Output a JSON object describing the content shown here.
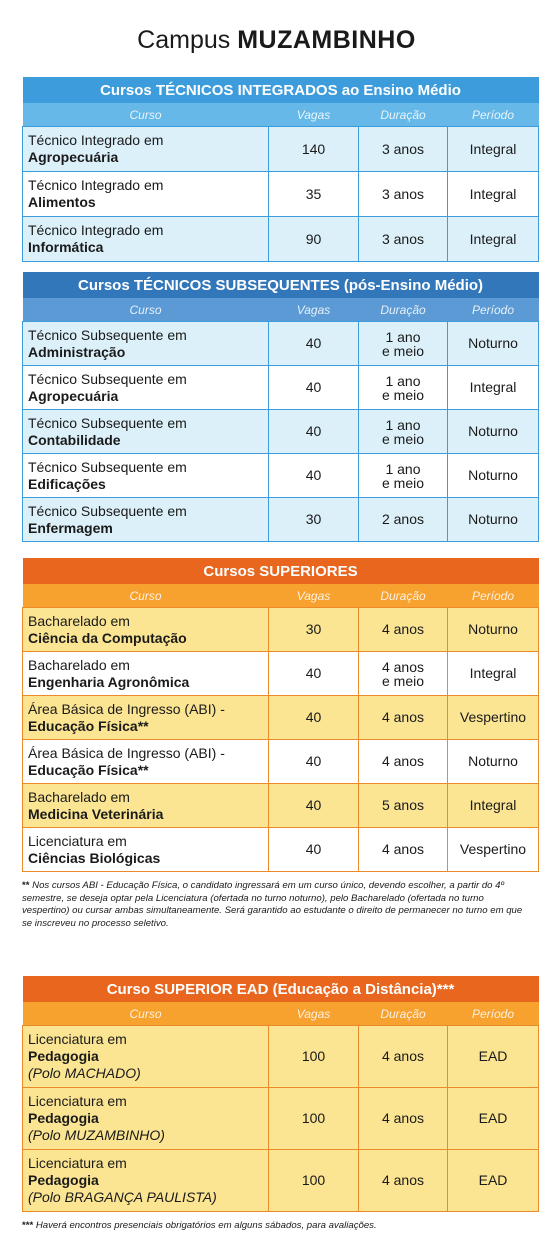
{
  "title": {
    "prefix": "Campus",
    "name": "MUZAMBINHO"
  },
  "sections": [
    {
      "title": "Cursos TÉCNICOS INTEGRADOS ao Ensino Médio",
      "headers": [
        "Curso",
        "Vagas",
        "Duração",
        "Período"
      ],
      "rows": [
        {
          "line": "Técnico Integrado em",
          "name": "Agropecuária",
          "vagas": 140,
          "duracao": [
            "3 anos"
          ],
          "periodo": "Integral"
        },
        {
          "line": "Técnico Integrado em",
          "name": "Alimentos",
          "vagas": 35,
          "duracao": [
            "3 anos"
          ],
          "periodo": "Integral"
        },
        {
          "line": "Técnico Integrado em",
          "name": "Informática",
          "vagas": 90,
          "duracao": [
            "3 anos"
          ],
          "periodo": "Integral"
        }
      ]
    },
    {
      "title": "Cursos TÉCNICOS SUBSEQUENTES (pós-Ensino Médio)",
      "headers": [
        "Curso",
        "Vagas",
        "Duração",
        "Período"
      ],
      "rows": [
        {
          "line": "Técnico Subsequente em",
          "name": "Administração",
          "vagas": 40,
          "duracao": [
            "1 ano",
            "e meio"
          ],
          "periodo": "Noturno"
        },
        {
          "line": "Técnico Subsequente em",
          "name": "Agropecuária",
          "vagas": 40,
          "duracao": [
            "1 ano",
            "e meio"
          ],
          "periodo": "Integral"
        },
        {
          "line": "Técnico Subsequente em",
          "name": "Contabilidade",
          "vagas": 40,
          "duracao": [
            "1 ano",
            "e meio"
          ],
          "periodo": "Noturno"
        },
        {
          "line": "Técnico Subsequente em",
          "name": "Edificações",
          "vagas": 40,
          "duracao": [
            "1 ano",
            "e meio"
          ],
          "periodo": "Noturno"
        },
        {
          "line": "Técnico Subsequente em",
          "name": "Enfermagem",
          "vagas": 30,
          "duracao": [
            "2 anos"
          ],
          "periodo": "Noturno"
        }
      ]
    },
    {
      "title": "Cursos SUPERIORES",
      "headers": [
        "Curso",
        "Vagas",
        "Duração",
        "Período"
      ],
      "rows": [
        {
          "line": "Bacharelado em",
          "name": "Ciência da Computação",
          "vagas": 30,
          "duracao": [
            "4 anos"
          ],
          "periodo": "Noturno"
        },
        {
          "line": "Bacharelado em",
          "name": "Engenharia Agronômica",
          "vagas": 40,
          "duracao": [
            "4 anos",
            "e meio"
          ],
          "periodo": "Integral"
        },
        {
          "line": "Área Básica de Ingresso (ABI) -",
          "name": "Educação Física**",
          "vagas": 40,
          "duracao": [
            "4 anos"
          ],
          "periodo": "Vespertino"
        },
        {
          "line": "Área Básica de Ingresso (ABI) -",
          "name": "Educação Física**",
          "vagas": 40,
          "duracao": [
            "4 anos"
          ],
          "periodo": "Noturno"
        },
        {
          "line": "Bacharelado em",
          "name": "Medicina Veterinária",
          "vagas": 40,
          "duracao": [
            "5 anos"
          ],
          "periodo": "Integral"
        },
        {
          "line": "Licenciatura em",
          "name": "Ciências Biológicas",
          "vagas": 40,
          "duracao": [
            "4 anos"
          ],
          "periodo": "Vespertino"
        }
      ],
      "note": {
        "mark": "**",
        "text": "Nos cursos ABI - Educação Física, o candidato ingressará em um curso único, devendo escolher, a partir do 4º semestre, se deseja optar pela Licenciatura (ofertada no turno noturno), pelo Bacharelado (ofertada no turno vespertino) ou cursar ambas simultaneamente. Será garantido ao estudante o direito de permanecer no turno em que se inscreveu no processo seletivo."
      }
    },
    {
      "title": "Curso SUPERIOR EAD (Educação a Distância)***",
      "headers": [
        "Curso",
        "Vagas",
        "Duração",
        "Período"
      ],
      "rows": [
        {
          "line": "Licenciatura em",
          "name": "Pedagogia",
          "place": "(Polo MACHADO)",
          "vagas": 100,
          "duracao": [
            "4 anos"
          ],
          "periodo": "EAD"
        },
        {
          "line": "Licenciatura em",
          "name": "Pedagogia",
          "place": "(Polo MUZAMBINHO)",
          "vagas": 100,
          "duracao": [
            "4 anos"
          ],
          "periodo": "EAD"
        },
        {
          "line": "Licenciatura em",
          "name": "Pedagogia",
          "place": "(Polo BRAGANÇA PAULISTA)",
          "vagas": 100,
          "duracao": [
            "4 anos"
          ],
          "periodo": "EAD"
        }
      ],
      "note": {
        "mark": "***",
        "text": "Haverá encontros presenciais obrigatórios em alguns sábados, para avaliações."
      }
    }
  ]
}
